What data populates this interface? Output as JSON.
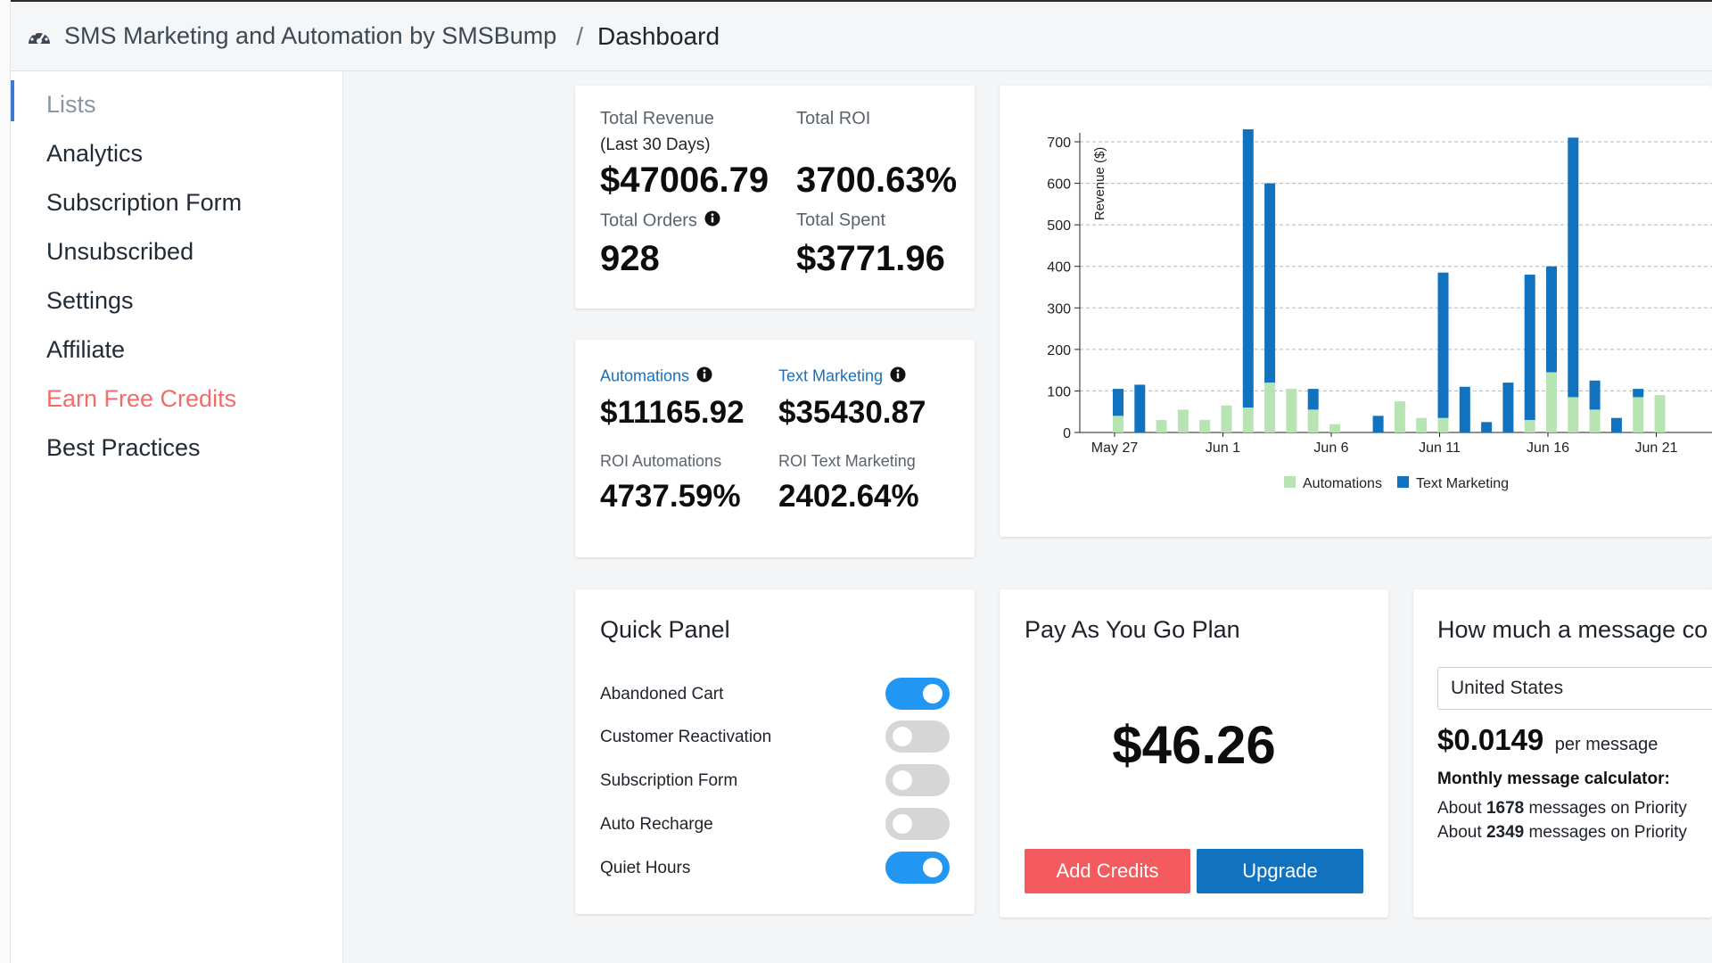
{
  "header": {
    "app_title": "SMS Marketing and Automation by SMSBump",
    "separator": "/",
    "current_page": "Dashboard"
  },
  "sidebar": {
    "items": [
      {
        "label": "Lists",
        "state": "active"
      },
      {
        "label": "Analytics"
      },
      {
        "label": "Subscription Form"
      },
      {
        "label": "Unsubscribed"
      },
      {
        "label": "Settings"
      },
      {
        "label": "Affiliate"
      },
      {
        "label": "Earn Free Credits",
        "state": "promo"
      },
      {
        "label": "Best Practices"
      }
    ]
  },
  "stats": {
    "total_revenue_label": "Total Revenue",
    "total_revenue_sub": "(Last 30 Days)",
    "total_revenue": "$47006.79",
    "total_roi_label": "Total ROI",
    "total_roi": "3700.63%",
    "total_orders_label": "Total Orders",
    "total_orders": "928",
    "total_spent_label": "Total Spent",
    "total_spent": "$3771.96"
  },
  "breakdown": {
    "automations_label": "Automations",
    "automations": "$11165.92",
    "text_marketing_label": "Text Marketing",
    "text_marketing": "$35430.87",
    "roi_automations_label": "ROI Automations",
    "roi_automations": "4737.59%",
    "roi_text_marketing_label": "ROI Text Marketing",
    "roi_text_marketing": "2402.64%"
  },
  "quick_panel": {
    "title": "Quick Panel",
    "toggles": [
      {
        "label": "Abandoned Cart",
        "on": true
      },
      {
        "label": "Customer Reactivation",
        "on": false
      },
      {
        "label": "Subscription Form",
        "on": false
      },
      {
        "label": "Auto Recharge",
        "on": false
      },
      {
        "label": "Quiet Hours",
        "on": true
      }
    ]
  },
  "plan": {
    "title": "Pay As You Go Plan",
    "amount": "$46.26",
    "add_credits_label": "Add Credits",
    "upgrade_label": "Upgrade"
  },
  "message_cost": {
    "title": "How much a message co",
    "country": "United States",
    "price": "$0.0149",
    "price_unit": "per message",
    "calculator_title": "Monthly message calculator:",
    "line1_prefix": "About ",
    "line1_count": "1678",
    "line1_suffix": " messages on Priority",
    "line2_prefix": "About ",
    "line2_count": "2349",
    "line2_suffix": " messages on Priority"
  },
  "colors": {
    "automations": "#b8e4b4",
    "text_marketing": "#1172c0",
    "toggle_on": "#2196f3",
    "add_credits": "#f45b5f",
    "upgrade": "#1172c0",
    "promo_text": "#f36b6b"
  },
  "chart_data": {
    "type": "bar",
    "stacked": true,
    "ylabel": "Revenue ($)",
    "ylim": [
      0,
      700
    ],
    "yticks": [
      0,
      100,
      200,
      300,
      400,
      500,
      600,
      700
    ],
    "x_tick_labels": [
      {
        "label": "May 27",
        "index": 0
      },
      {
        "label": "Jun 1",
        "index": 5
      },
      {
        "label": "Jun 6",
        "index": 10
      },
      {
        "label": "Jun 11",
        "index": 15
      },
      {
        "label": "Jun 16",
        "index": 20
      },
      {
        "label": "Jun 21",
        "index": 25
      }
    ],
    "series": [
      {
        "name": "Automations",
        "values": [
          40,
          0,
          30,
          55,
          30,
          65,
          60,
          120,
          105,
          55,
          20,
          0,
          0,
          75,
          35,
          35,
          0,
          0,
          0,
          30,
          145,
          85,
          55,
          0,
          85,
          90
        ]
      },
      {
        "name": "Text Marketing",
        "values": [
          65,
          115,
          0,
          0,
          0,
          0,
          670,
          480,
          0,
          50,
          0,
          0,
          40,
          0,
          0,
          350,
          110,
          25,
          120,
          350,
          255,
          625,
          70,
          35,
          20,
          0
        ]
      }
    ],
    "legend": [
      "Automations",
      "Text Marketing"
    ],
    "legend_position": "bottom",
    "grid": true
  }
}
